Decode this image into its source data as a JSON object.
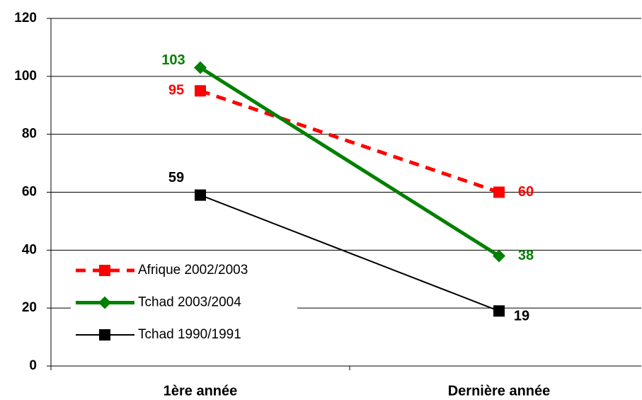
{
  "chart_data": {
    "type": "line",
    "categories": [
      "1ère année",
      "Dernière année"
    ],
    "series": [
      {
        "name": "Afrique 2002/2003",
        "color": "#ff0000",
        "line_style": "dashed",
        "marker": "square",
        "values": [
          95,
          60
        ]
      },
      {
        "name": "Tchad 2003/2004",
        "color": "#008000",
        "line_style": "solid",
        "marker": "diamond",
        "values": [
          103,
          38
        ]
      },
      {
        "name": "Tchad 1990/1991",
        "color": "#000000",
        "line_style": "solid",
        "marker": "square",
        "values": [
          59,
          19
        ]
      }
    ],
    "ylim": [
      0,
      120
    ],
    "yticks": [
      0,
      20,
      40,
      60,
      80,
      100,
      120
    ],
    "grid": true,
    "legend": "lower left"
  }
}
